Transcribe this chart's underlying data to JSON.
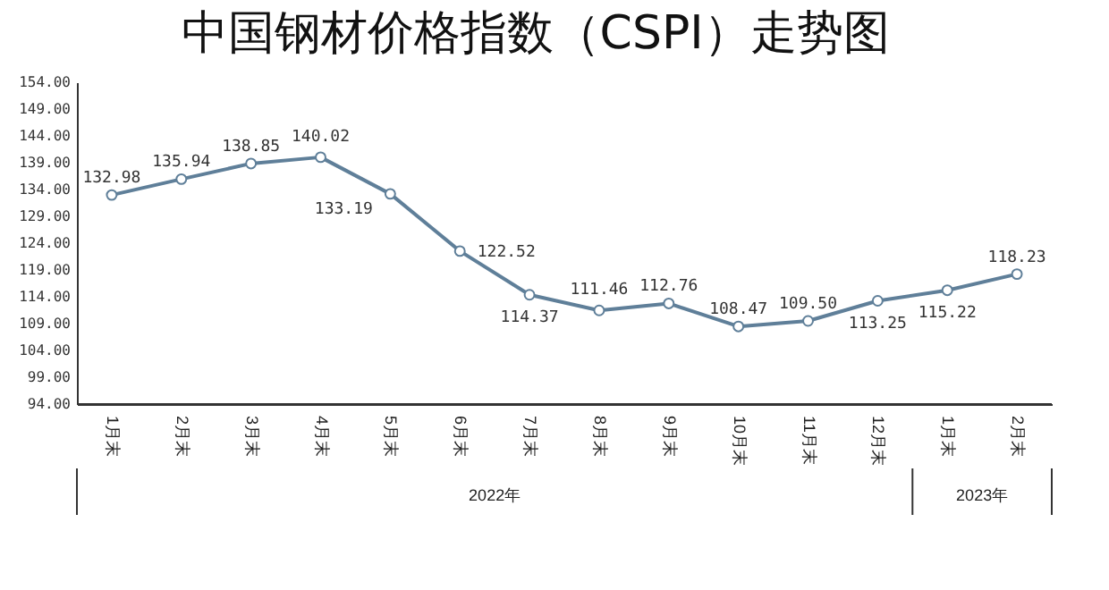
{
  "chart_data": {
    "type": "line",
    "title": "中国钢材价格指数（CSPI）走势图",
    "categories": [
      "1月末",
      "2月末",
      "3月末",
      "4月末",
      "5月末",
      "6月末",
      "7月末",
      "8月末",
      "9月末",
      "10月末",
      "11月末",
      "12月末",
      "1月末",
      "2月末"
    ],
    "series": [
      {
        "color": "#5f7f99",
        "values": [
          132.98,
          135.94,
          138.85,
          140.02,
          133.19,
          122.52,
          114.37,
          111.46,
          112.76,
          108.47,
          109.5,
          113.25,
          115.22,
          118.23
        ],
        "value_labels": [
          "132.98",
          "135.94",
          "138.85",
          "140.02",
          "133.19",
          "122.52",
          "114.37",
          "111.46",
          "112.76",
          "108.47",
          "109.50",
          "113.25",
          "115.22",
          "118.23"
        ]
      }
    ],
    "ylim": [
      94,
      154
    ],
    "yticks": [
      {
        "value": 94,
        "label": "94.00"
      },
      {
        "value": 99,
        "label": "99.00"
      },
      {
        "value": 104,
        "label": "104.00"
      },
      {
        "value": 109,
        "label": "109.00"
      },
      {
        "value": 114,
        "label": "114.00"
      },
      {
        "value": 119,
        "label": "119.00"
      },
      {
        "value": 124,
        "label": "124.00"
      },
      {
        "value": 129,
        "label": "129.00"
      },
      {
        "value": 134,
        "label": "134.00"
      },
      {
        "value": 139,
        "label": "139.00"
      },
      {
        "value": 144,
        "label": "144.00"
      },
      {
        "value": 149,
        "label": "149.00"
      },
      {
        "value": 154,
        "label": "154.00"
      }
    ],
    "annotations": [
      "2022年",
      "2023年"
    ],
    "marker": "circle",
    "grid": false
  }
}
